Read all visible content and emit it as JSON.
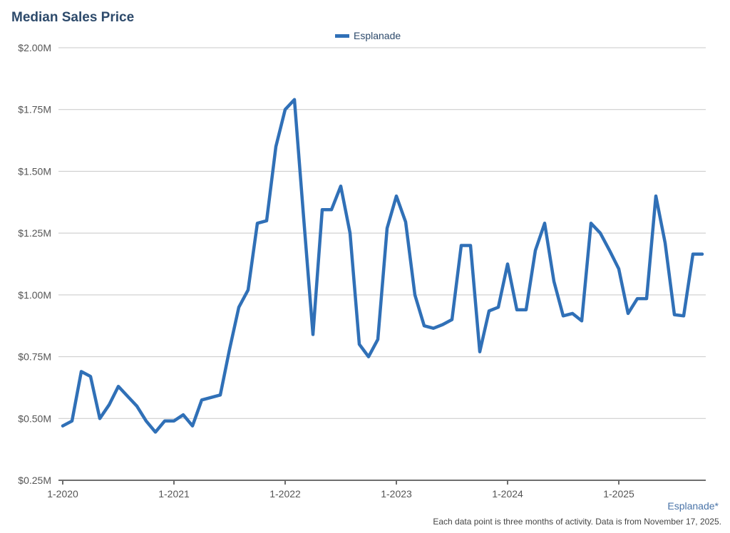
{
  "title": "Median Sales Price",
  "legend": {
    "label": "Esplanade",
    "color": "#3070b7"
  },
  "source_label": "Esplanade*",
  "note": "Each data point is three months of activity. Data is from November 17, 2025.",
  "chart_data": {
    "type": "line",
    "title": "Median Sales Price",
    "xlabel": "",
    "ylabel": "",
    "ylim": [
      0.25,
      2.0
    ],
    "y_ticks": [
      "$0.25M",
      "$0.50M",
      "$0.75M",
      "$1.00M",
      "$1.25M",
      "$1.50M",
      "$1.75M",
      "$2.00M"
    ],
    "y_tick_values": [
      0.25,
      0.5,
      0.75,
      1.0,
      1.25,
      1.5,
      1.75,
      2.0
    ],
    "x_ticks": [
      "1-2020",
      "1-2021",
      "1-2022",
      "1-2023",
      "1-2024",
      "1-2025"
    ],
    "grid": true,
    "legend_position": "top",
    "unit": "$M",
    "x": [
      "1-2020",
      "2-2020",
      "3-2020",
      "4-2020",
      "5-2020",
      "6-2020",
      "7-2020",
      "8-2020",
      "9-2020",
      "10-2020",
      "11-2020",
      "12-2020",
      "1-2021",
      "2-2021",
      "3-2021",
      "4-2021",
      "5-2021",
      "6-2021",
      "7-2021",
      "8-2021",
      "9-2021",
      "10-2021",
      "11-2021",
      "12-2021",
      "1-2022",
      "2-2022",
      "3-2022",
      "4-2022",
      "5-2022",
      "6-2022",
      "7-2022",
      "8-2022",
      "9-2022",
      "10-2022",
      "11-2022",
      "12-2022",
      "1-2023",
      "2-2023",
      "3-2023",
      "4-2023",
      "5-2023",
      "6-2023",
      "7-2023",
      "8-2023",
      "9-2023",
      "10-2023",
      "11-2023",
      "12-2023",
      "1-2024",
      "2-2024",
      "3-2024",
      "4-2024",
      "5-2024",
      "6-2024",
      "7-2024",
      "8-2024",
      "9-2024",
      "10-2024",
      "11-2024",
      "12-2024",
      "1-2025",
      "2-2025",
      "3-2025",
      "4-2025",
      "5-2025",
      "6-2025",
      "7-2025",
      "8-2025",
      "9-2025",
      "10-2025"
    ],
    "series": [
      {
        "name": "Esplanade",
        "color": "#3070b7",
        "values": [
          0.47,
          0.49,
          0.69,
          0.67,
          0.5,
          0.555,
          0.63,
          0.59,
          0.55,
          0.49,
          0.445,
          0.49,
          0.49,
          0.515,
          0.47,
          0.575,
          0.585,
          0.595,
          0.78,
          0.95,
          1.02,
          1.29,
          1.3,
          1.6,
          1.75,
          1.79,
          1.31,
          0.84,
          1.345,
          1.345,
          1.44,
          1.25,
          0.8,
          0.75,
          0.82,
          1.27,
          1.4,
          1.295,
          1.0,
          0.875,
          0.865,
          0.88,
          0.9,
          1.2,
          1.2,
          0.77,
          0.935,
          0.95,
          1.125,
          0.94,
          0.94,
          1.18,
          1.29,
          1.055,
          0.915,
          0.925,
          0.895,
          1.29,
          1.25,
          1.18,
          1.105,
          0.925,
          0.985,
          0.985,
          1.4,
          1.21,
          0.92,
          0.915,
          1.165,
          1.165
        ]
      }
    ]
  }
}
